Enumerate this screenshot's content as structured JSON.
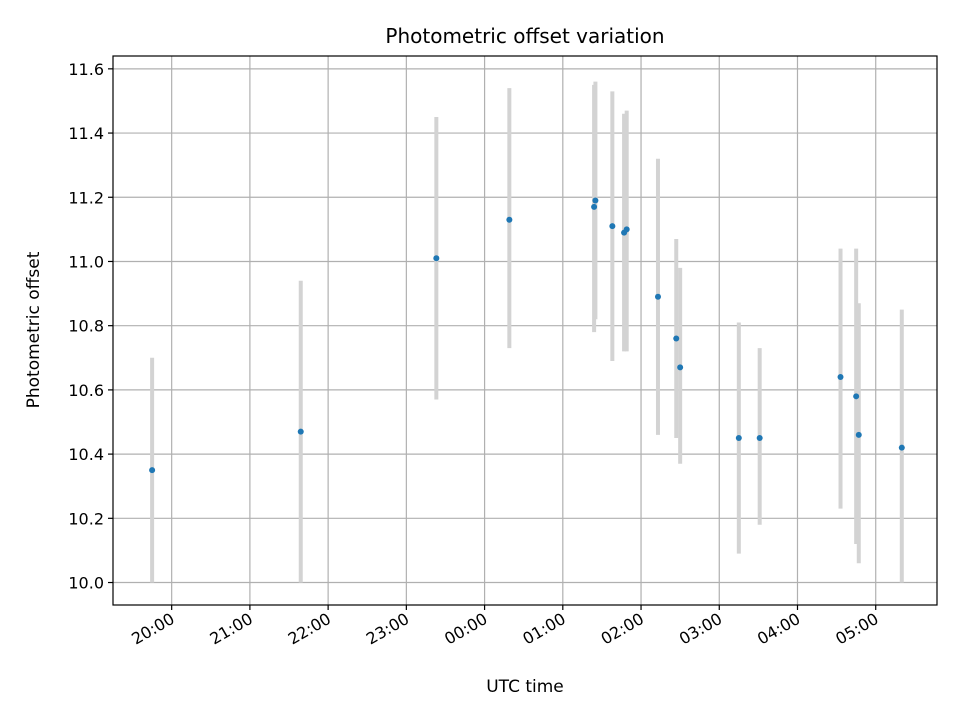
{
  "chart_data": {
    "type": "scatter",
    "title": "Photometric offset variation",
    "xlabel": "UTC time",
    "ylabel": "Photometric offset",
    "x_axis": {
      "range": [
        "19:15",
        "05:47"
      ],
      "ticks": [
        "20:00",
        "21:00",
        "22:00",
        "23:00",
        "00:00",
        "01:00",
        "02:00",
        "03:00",
        "04:00",
        "05:00"
      ]
    },
    "y_axis": {
      "range": [
        9.93,
        11.64
      ],
      "ticks": [
        "10.0",
        "10.2",
        "10.4",
        "10.6",
        "10.8",
        "11.0",
        "11.2",
        "11.4",
        "11.6"
      ]
    },
    "grid": true,
    "colors": {
      "point": "#1f77b4",
      "errorbar": "#d3d3d3",
      "grid": "#b0b0b0"
    },
    "points": [
      {
        "time": "19:45",
        "y": 10.35,
        "low": 10.0,
        "high": 10.7
      },
      {
        "time": "21:39",
        "y": 10.47,
        "low": 10.0,
        "high": 10.94
      },
      {
        "time": "23:23",
        "y": 11.01,
        "low": 10.57,
        "high": 11.45
      },
      {
        "time": "00:19",
        "y": 11.13,
        "low": 10.73,
        "high": 11.54
      },
      {
        "time": "01:24",
        "y": 11.17,
        "low": 10.78,
        "high": 11.55
      },
      {
        "time": "01:25",
        "y": 11.19,
        "low": 10.82,
        "high": 11.56
      },
      {
        "time": "01:38",
        "y": 11.11,
        "low": 10.69,
        "high": 11.53
      },
      {
        "time": "01:47",
        "y": 11.09,
        "low": 10.72,
        "high": 11.46
      },
      {
        "time": "01:49",
        "y": 11.1,
        "low": 10.72,
        "high": 11.47
      },
      {
        "time": "02:13",
        "y": 10.89,
        "low": 10.46,
        "high": 11.32
      },
      {
        "time": "02:27",
        "y": 10.76,
        "low": 10.45,
        "high": 11.07
      },
      {
        "time": "02:30",
        "y": 10.67,
        "low": 10.37,
        "high": 10.98
      },
      {
        "time": "03:15",
        "y": 10.45,
        "low": 10.09,
        "high": 10.81
      },
      {
        "time": "03:31",
        "y": 10.45,
        "low": 10.18,
        "high": 10.73
      },
      {
        "time": "04:33",
        "y": 10.64,
        "low": 10.23,
        "high": 11.04
      },
      {
        "time": "04:45",
        "y": 10.58,
        "low": 10.12,
        "high": 11.04
      },
      {
        "time": "04:47",
        "y": 10.46,
        "low": 10.06,
        "high": 10.87
      },
      {
        "time": "05:20",
        "y": 10.42,
        "low": 10.0,
        "high": 10.85
      }
    ]
  }
}
